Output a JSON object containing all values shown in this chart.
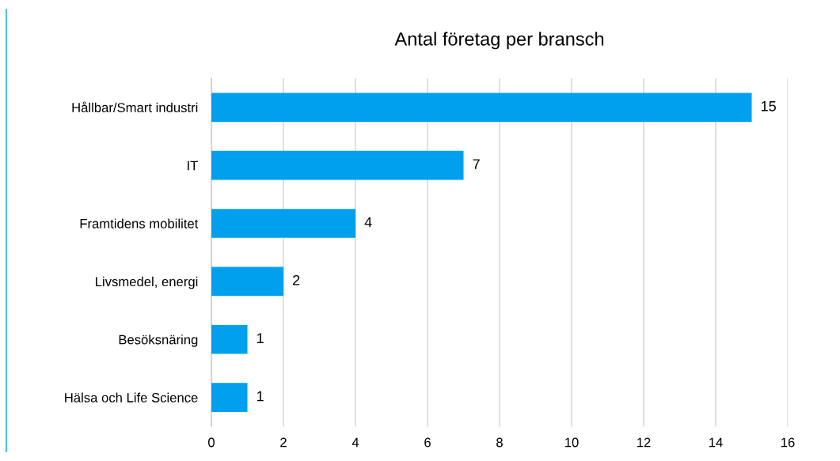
{
  "chart_data": {
    "type": "bar",
    "orientation": "horizontal",
    "title": "Antal företag per bransch",
    "categories": [
      "Hållbar/Smart industri",
      "IT",
      "Framtidens mobilitet",
      "Livsmedel, energi",
      "Besöksnäring",
      "Hälsa och Life Science"
    ],
    "values": [
      15,
      7,
      4,
      2,
      1,
      1
    ],
    "color": "#00a0ef",
    "xlim": [
      0,
      16
    ],
    "xticks": [
      0,
      2,
      4,
      6,
      8,
      10,
      12,
      14,
      16
    ],
    "grid": "x",
    "data_labels": true
  }
}
